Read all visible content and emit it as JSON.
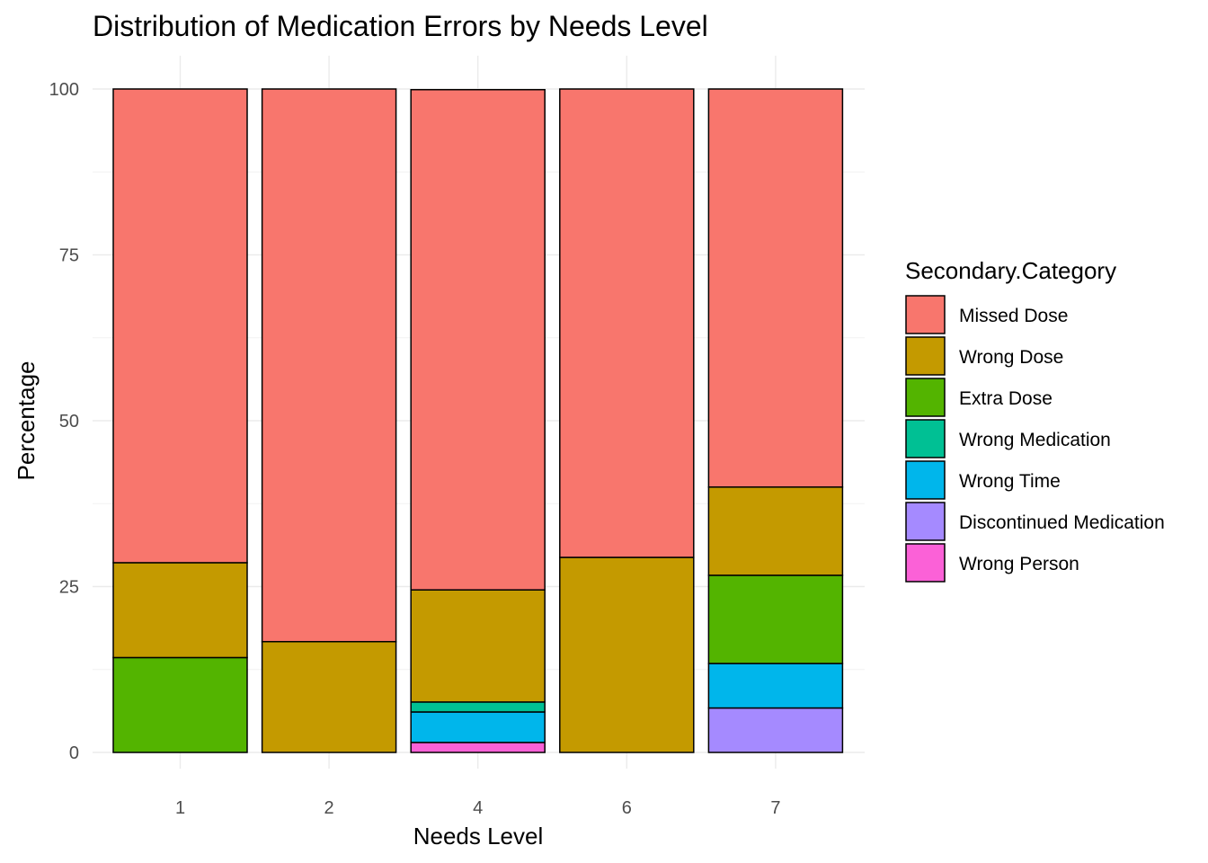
{
  "chart_data": {
    "type": "bar",
    "stacked": true,
    "title": "Distribution of Medication Errors by Needs Level",
    "xlabel": "Needs Level",
    "ylabel": "Percentage",
    "categories": [
      "1",
      "2",
      "4",
      "6",
      "7"
    ],
    "ylim": [
      0,
      100
    ],
    "yticks": [
      0,
      25,
      50,
      75,
      100
    ],
    "grid": true,
    "legend": {
      "title": "Secondary.Category",
      "position": "right"
    },
    "series": [
      {
        "name": "Missed Dose",
        "color": "#F8766D",
        "values": [
          71.4,
          83.3,
          75.4,
          70.6,
          60.0
        ]
      },
      {
        "name": "Wrong Dose",
        "color": "#C49A00",
        "values": [
          14.3,
          16.7,
          16.9,
          29.4,
          13.3
        ]
      },
      {
        "name": "Extra Dose",
        "color": "#53B400",
        "values": [
          14.3,
          0,
          0,
          0,
          13.3
        ]
      },
      {
        "name": "Wrong Medication",
        "color": "#00C094",
        "values": [
          0,
          0,
          1.5,
          0,
          0
        ]
      },
      {
        "name": "Wrong Time",
        "color": "#00B6EB",
        "values": [
          0,
          0,
          4.6,
          0,
          6.7
        ]
      },
      {
        "name": "Discontinued Medication",
        "color": "#A58AFF",
        "values": [
          0,
          0,
          0,
          0,
          6.7
        ]
      },
      {
        "name": "Wrong Person",
        "color": "#FB61D7",
        "values": [
          0,
          0,
          1.5,
          0,
          0
        ]
      }
    ]
  }
}
